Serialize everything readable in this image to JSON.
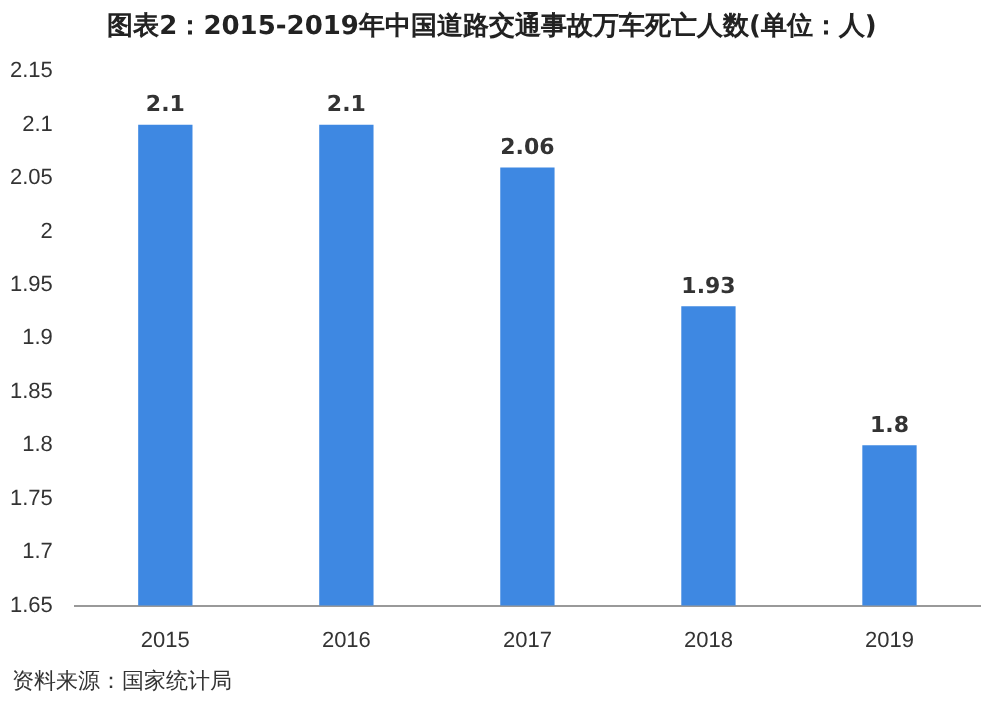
{
  "chart_data": {
    "type": "bar",
    "title": "图表2：2015-2019年中国道路交通事故万车死亡人数(单位：人)",
    "categories": [
      "2015",
      "2016",
      "2017",
      "2018",
      "2019"
    ],
    "values": [
      2.1,
      2.1,
      2.06,
      1.93,
      1.8
    ],
    "color": "#3e88e2",
    "ylim": [
      1.65,
      2.15
    ],
    "yticks": [
      1.65,
      1.7,
      1.75,
      1.8,
      1.85,
      1.9,
      1.95,
      2,
      2.05,
      2.1,
      2.15
    ],
    "grid": false,
    "legend": false,
    "data_labels": true,
    "annotations": [
      "资料来源：国家统计局"
    ]
  }
}
